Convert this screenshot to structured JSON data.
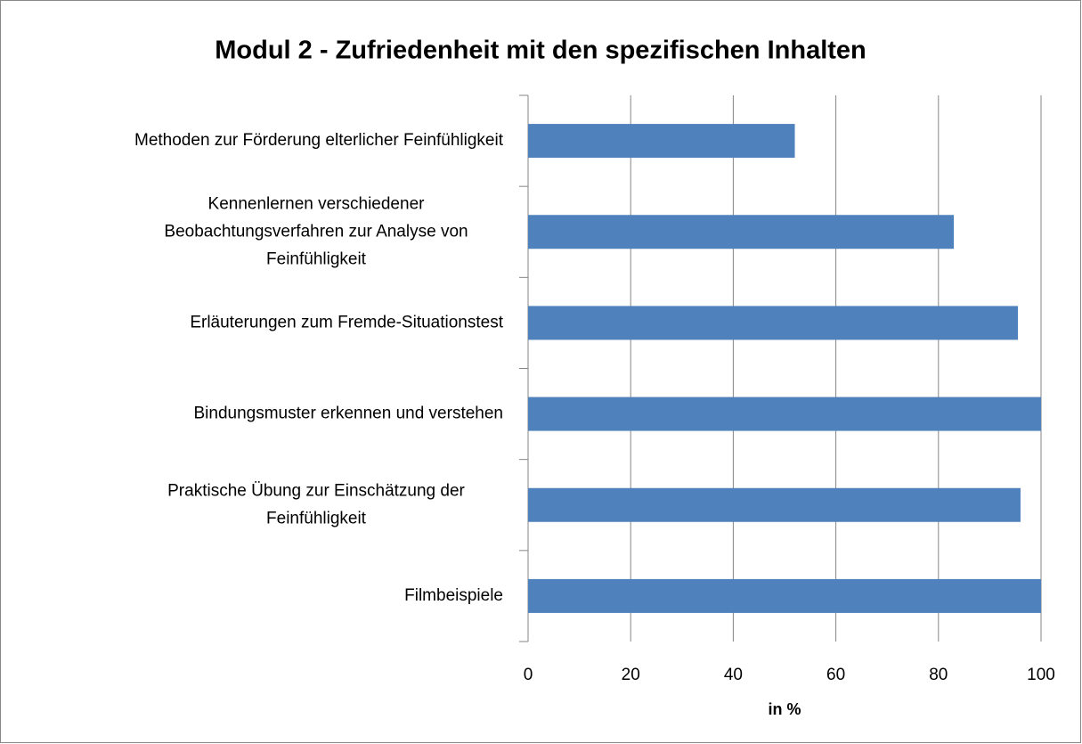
{
  "chart_data": {
    "type": "barh",
    "title": "Modul 2 - Zufriedenheit mit den spezifischen Inhalten",
    "categories": [
      "Methoden zur Förderung elterlicher Feinfühligkeit",
      "Kennenlernen verschiedener\nBeobachtungsverfahren zur Analyse von\nFeinfühligkeit",
      "Erläuterungen zum Fremde-Situationstest",
      "Bindungsmuster erkennen und verstehen",
      "Praktische Übung zur Einschätzung der\nFeinfühligkeit",
      "Filmbeispiele"
    ],
    "values": [
      52,
      83,
      95.5,
      100,
      96,
      100
    ],
    "color": "#4f81bd",
    "xlabel": "in %",
    "xlim": [
      0,
      100
    ],
    "xticks": [
      0,
      20,
      40,
      60,
      80,
      100
    ],
    "grid": true
  }
}
